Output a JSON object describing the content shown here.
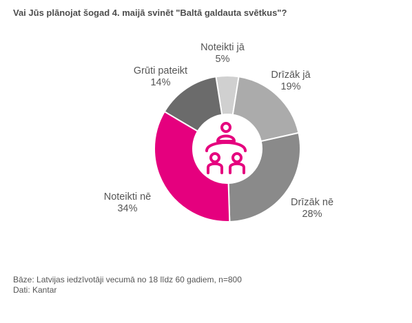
{
  "chart_data": {
    "type": "pie",
    "title": "Vai Jūs plānojat šogad 4. maijā svinēt \"Baltā galdauta svētkus\"?",
    "donut": true,
    "slices": [
      {
        "label": "Noteikti jā",
        "value": 5,
        "display": "5%",
        "color": "#d0d0d0"
      },
      {
        "label": "Drīzāk jā",
        "value": 19,
        "display": "19%",
        "color": "#ababab"
      },
      {
        "label": "Drīzāk nē",
        "value": 28,
        "display": "28%",
        "color": "#8a8a8a"
      },
      {
        "label": "Noteikti nē",
        "value": 34,
        "display": "34%",
        "color": "#e5007e"
      },
      {
        "label": "Grūti pateikt",
        "value": 14,
        "display": "14%",
        "color": "#6b6b6b"
      }
    ],
    "center_icon": "family-table-icon",
    "accent_color": "#e5007e"
  },
  "footnotes": {
    "base": "Bāze: Latvijas iedzīvotāji vecumā no 18 līdz 60 gadiem, n=800",
    "source": "Dati: Kantar"
  }
}
